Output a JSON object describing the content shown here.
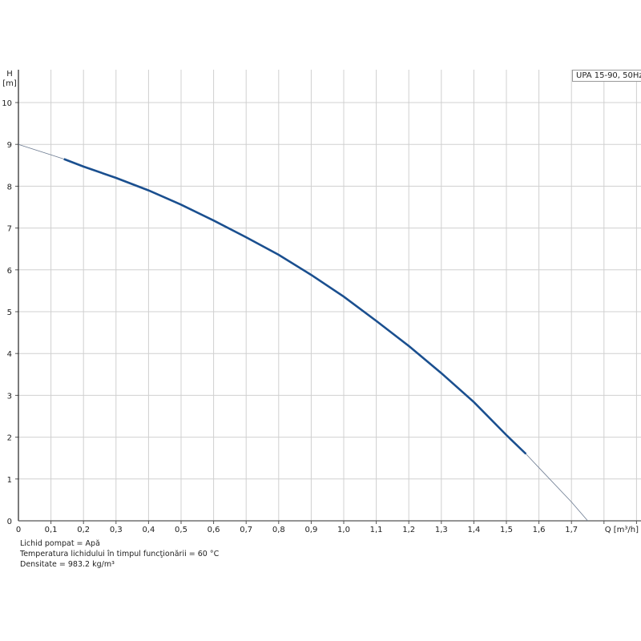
{
  "chart_data": {
    "type": "line",
    "title": "",
    "xlabel": "Q [m³/h]",
    "ylabel_line1": "H",
    "ylabel_line2": "[m]",
    "xlim": [
      0,
      1.9
    ],
    "ylim": [
      0,
      10.4
    ],
    "x_ticks": [
      "0",
      "0,1",
      "0,2",
      "0,3",
      "0,4",
      "0,5",
      "0,6",
      "0,7",
      "0,8",
      "0,9",
      "1,0",
      "1,1",
      "1,2",
      "1,3",
      "1,4",
      "1,5",
      "1,6",
      "1,7"
    ],
    "y_ticks": [
      "0",
      "1",
      "2",
      "3",
      "4",
      "5",
      "6",
      "7",
      "8",
      "9",
      "10"
    ],
    "grid": true,
    "legend": "top-right",
    "series": [
      {
        "name": "UPA 15-90, 50Hz",
        "color": "#1a4f8f",
        "operating_range": [
          0.14,
          1.56
        ],
        "x": [
          0,
          0.1,
          0.14,
          0.2,
          0.3,
          0.4,
          0.5,
          0.6,
          0.7,
          0.8,
          0.9,
          1.0,
          1.1,
          1.2,
          1.3,
          1.4,
          1.5,
          1.56,
          1.6,
          1.7,
          1.75
        ],
        "y": [
          9.0,
          8.75,
          8.65,
          8.47,
          8.2,
          7.9,
          7.56,
          7.18,
          6.78,
          6.36,
          5.88,
          5.36,
          4.78,
          4.18,
          3.53,
          2.84,
          2.05,
          1.6,
          1.27,
          0.45,
          0
        ]
      }
    ]
  },
  "notes": [
    "Lichid pompat = Apă",
    "Temperatura lichidului în timpul funcţionării = 60 °C",
    "Densitate = 983.2 kg/m³"
  ]
}
